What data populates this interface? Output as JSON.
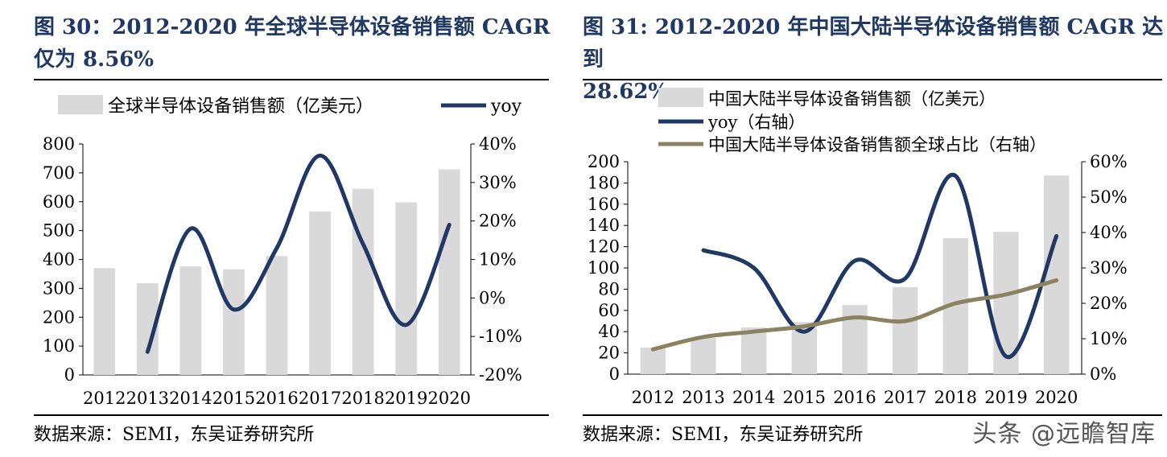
{
  "left": {
    "title_line1": "图 30：2012-2020 年全球半导体设备销售额 CAGR",
    "title_line2": "仅为 8.56%",
    "source": "数据来源：SEMI，东吴证券研究所"
  },
  "right": {
    "title_line1": "图 31: 2012-2020 年中国大陆半导体设备销售额 CAGR 达到",
    "title_line2": "28.62%",
    "source": "数据来源：SEMI，东吴证券研究所"
  },
  "watermark": "头条 @远瞻智库",
  "colors": {
    "bar": "#d9d9d9",
    "yoy": "#1f3864",
    "share": "#8c8161",
    "title": "#1f3864"
  },
  "chart_data": [
    {
      "type": "bar",
      "categories": [
        "2012",
        "2013",
        "2014",
        "2015",
        "2016",
        "2017",
        "2018",
        "2019",
        "2020"
      ],
      "series": [
        {
          "name": "全球半导体设备销售额（亿美元）",
          "type": "bar",
          "axis": "left",
          "values": [
            370,
            318,
            376,
            366,
            412,
            566,
            645,
            598,
            712
          ]
        },
        {
          "name": "yoy",
          "type": "line",
          "axis": "right",
          "values": [
            null,
            -14,
            18,
            -3,
            13,
            37,
            14,
            -7,
            19
          ]
        }
      ],
      "ylim": [
        0,
        800
      ],
      "yticks": [
        0,
        100,
        200,
        300,
        400,
        500,
        600,
        700,
        800
      ],
      "y2lim": [
        -20,
        40
      ],
      "y2ticks": [
        "-20%",
        "-10%",
        "0%",
        "10%",
        "20%",
        "30%",
        "40%"
      ],
      "legend_placement": "top"
    },
    {
      "type": "bar",
      "categories": [
        "2012",
        "2013",
        "2014",
        "2015",
        "2016",
        "2017",
        "2018",
        "2019",
        "2020"
      ],
      "series": [
        {
          "name": "中国大陆半导体设备销售额（亿美元）",
          "type": "bar",
          "axis": "left",
          "values": [
            25,
            34,
            44,
            49,
            65,
            82,
            128,
            134,
            187
          ]
        },
        {
          "name": "yoy（右轴）",
          "type": "line",
          "axis": "right",
          "values": [
            null,
            35,
            30,
            12,
            32,
            27,
            56,
            5,
            39
          ]
        },
        {
          "name": "中国大陆半导体设备销售额全球占比（右轴）",
          "type": "line",
          "axis": "right",
          "values": [
            7,
            10.5,
            12,
            13.5,
            16,
            15,
            20,
            22.5,
            26.5
          ]
        }
      ],
      "ylim": [
        0,
        200
      ],
      "yticks": [
        0,
        20,
        40,
        60,
        80,
        100,
        120,
        140,
        160,
        180,
        200
      ],
      "y2lim": [
        0,
        60
      ],
      "y2ticks": [
        "0%",
        "10%",
        "20%",
        "30%",
        "40%",
        "50%",
        "60%"
      ],
      "legend_placement": "top"
    }
  ]
}
